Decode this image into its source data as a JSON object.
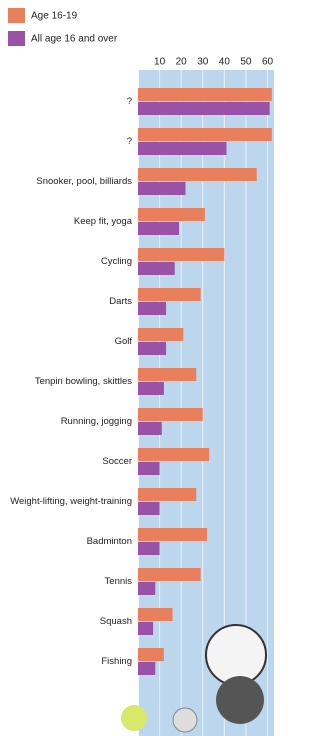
{
  "chart_data": {
    "type": "bar",
    "orientation": "horizontal",
    "categories": [
      "?",
      "?",
      "Snooker, pool, billiards",
      "Keep fit, yoga",
      "Cycling",
      "Darts",
      "Golf",
      "Tenpin bowling, skittles",
      "Running, jogging",
      "Soccer",
      "Weight-lifting, weight-training",
      "Badminton",
      "Tennis",
      "Squash",
      "Fishing"
    ],
    "series": [
      {
        "name": "Age 16-19",
        "color": "#e8805e",
        "values": [
          62,
          62,
          55,
          31,
          40,
          29,
          21,
          27,
          30,
          33,
          27,
          32,
          29,
          16,
          12
        ]
      },
      {
        "name": "All age 16 and over",
        "color": "#9a52a6",
        "values": [
          61,
          41,
          22,
          19,
          17,
          13,
          13,
          12,
          11,
          10,
          10,
          10,
          8,
          7,
          8
        ]
      }
    ],
    "xlim": [
      0,
      63
    ],
    "xticks": [
      10,
      20,
      30,
      40,
      50,
      60
    ],
    "grid": true,
    "legend": "top-left"
  }
}
